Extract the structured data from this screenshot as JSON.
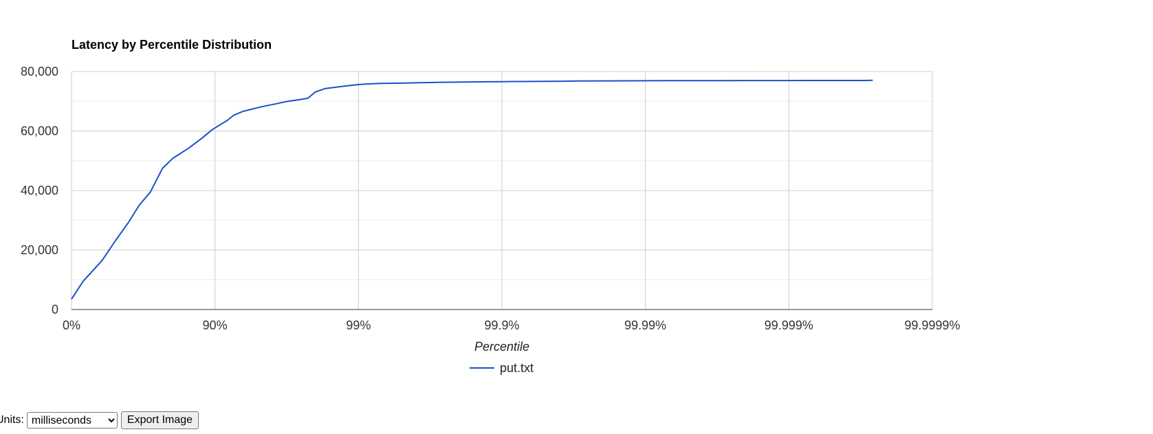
{
  "chart_data": {
    "type": "line",
    "title": "Latency by Percentile Distribution",
    "xlabel": "Percentile",
    "ylabel": "",
    "x_scale": "percentile-log (nines)",
    "x_ticks": [
      "0%",
      "90%",
      "99%",
      "99.9%",
      "99.99%",
      "99.999%",
      "99.9999%"
    ],
    "y_ticks": [
      "0",
      "20,000",
      "40,000",
      "60,000",
      "80,000"
    ],
    "ylim": [
      0,
      80000
    ],
    "grid": true,
    "legend_position": "bottom",
    "series": [
      {
        "name": "put.txt",
        "color": "#1a4fcb",
        "x": [
          0,
          17,
          38.9,
          50.4,
          60.2,
          66.2,
          71.8,
          76.8,
          80.3,
          84.8,
          87.6,
          89.5,
          91.8,
          92.6,
          93.6,
          94.6,
          95.5,
          96.3,
          96.8,
          97.3,
          97.75,
          98.0,
          98.3,
          98.6,
          98.8,
          98.9,
          99.0,
          99.1,
          99.3,
          99.5,
          99.6,
          99.68,
          99.74,
          99.8,
          99.84,
          99.87,
          99.9,
          99.92,
          99.95,
          99.962,
          99.97,
          99.98,
          99.987,
          99.99,
          99.993,
          99.995,
          99.997,
          99.998,
          99.9985,
          99.999,
          99.9993,
          99.9995,
          99.9997,
          99.99974
        ],
        "y": [
          3500,
          9500,
          16500,
          23000,
          29500,
          35000,
          39500,
          47500,
          50800,
          54300,
          57500,
          60400,
          63600,
          65300,
          66600,
          67500,
          68400,
          69200,
          69900,
          70400,
          71000,
          73100,
          74300,
          74800,
          75200,
          75400,
          75600,
          75800,
          76000,
          76100,
          76200,
          76300,
          76400,
          76450,
          76500,
          76550,
          76600,
          76650,
          76700,
          76750,
          76800,
          76850,
          76880,
          76900,
          76920,
          76940,
          76950,
          76960,
          76970,
          76980,
          76990,
          77000,
          77000,
          77050
        ]
      }
    ]
  },
  "controls": {
    "units_label": "Units:",
    "units_value": "milliseconds",
    "export_label": "Export Image"
  }
}
